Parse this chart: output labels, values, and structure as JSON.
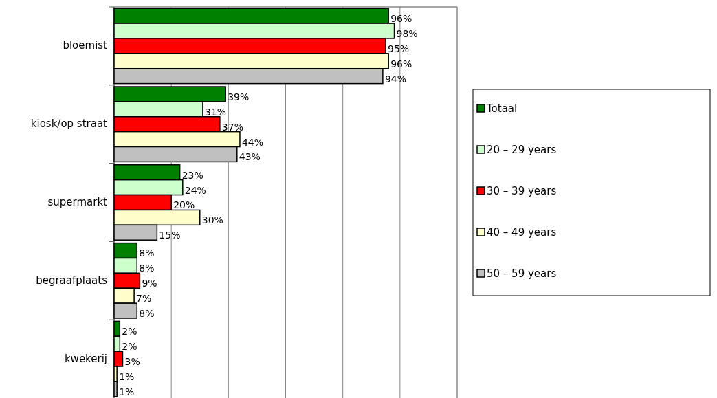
{
  "chart_data": {
    "type": "bar",
    "orientation": "horizontal",
    "categories": [
      "bloemist",
      "kiosk/op straat",
      "supermarkt",
      "begraafplaats",
      "kwekerij"
    ],
    "series": [
      {
        "name": "Totaal",
        "color": "#008000",
        "values": [
          96,
          39,
          23,
          8,
          2
        ],
        "value_labels": [
          "96%",
          "39%",
          "23%",
          "8%",
          "2%"
        ]
      },
      {
        "name": "20 – 29 years",
        "color": "#ccffcc",
        "values": [
          98,
          31,
          24,
          8,
          2
        ],
        "value_labels": [
          "98%",
          "31%",
          "24%",
          "8%",
          "2%"
        ]
      },
      {
        "name": "30 – 39 years",
        "color": "#ff0000",
        "values": [
          95,
          37,
          20,
          9,
          3
        ],
        "value_labels": [
          "95%",
          "37%",
          "20%",
          "9%",
          "3%"
        ]
      },
      {
        "name": "40 – 49 years",
        "color": "#ffffcc",
        "values": [
          96,
          44,
          30,
          7,
          1
        ],
        "value_labels": [
          "96%",
          "44%",
          "30%",
          "7%",
          "1%"
        ]
      },
      {
        "name": "50 – 59 years",
        "color": "#c0c0c0",
        "values": [
          94,
          43,
          15,
          8,
          1
        ],
        "value_labels": [
          "94%",
          "43%",
          "15%",
          "8%",
          "1%"
        ]
      }
    ],
    "grid": "x",
    "legend": "right",
    "tick_labels": "y"
  }
}
